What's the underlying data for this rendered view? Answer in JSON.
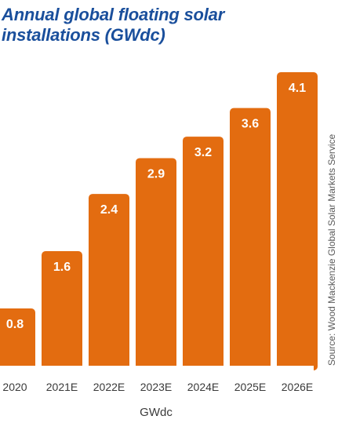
{
  "chart_data": {
    "type": "bar",
    "title": "Annual global floating solar installations (GWdc)",
    "xlabel": "GWdc",
    "ylabel": "",
    "categories": [
      "2020",
      "2021E",
      "2022E",
      "2023E",
      "2024E",
      "2025E",
      "2026E"
    ],
    "values": [
      0.8,
      1.6,
      2.4,
      2.9,
      3.2,
      3.6,
      4.1
    ],
    "data_labels": [
      "0.8",
      "1.6",
      "2.4",
      "2.9",
      "3.2",
      "3.6",
      "4.1"
    ],
    "ylim": [
      0,
      4.1
    ],
    "grid": false,
    "legend": "none",
    "source_note": "Source: Wood Mackenzie Global Solar Markets Service",
    "bar_color": "#e36c10",
    "title_color": "#1a4f9c"
  }
}
